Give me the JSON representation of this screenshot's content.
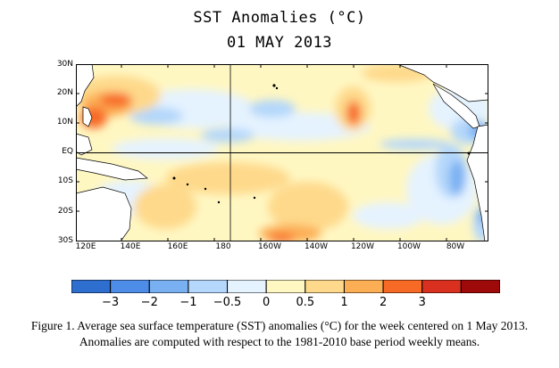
{
  "title": "SST Anomalies (°C)",
  "date": "01 MAY 2013",
  "lat_labels": [
    "30N",
    "20N",
    "10N",
    "EQ",
    "10S",
    "20S",
    "30S"
  ],
  "lon_labels": [
    "120E",
    "140E",
    "160E",
    "180",
    "160W",
    "140W",
    "120W",
    "100W",
    "80W"
  ],
  "colorbar": {
    "colors": [
      "#2e6ecf",
      "#4d8de8",
      "#79b0f2",
      "#b4d7fb",
      "#e5f3ff",
      "#fff7c2",
      "#fed98b",
      "#fcae55",
      "#f76a25",
      "#d9301f",
      "#9e0a0a"
    ],
    "tick_labels": [
      "−3",
      "−2",
      "−1",
      "−0.5",
      "0",
      "0.5",
      "1",
      "2",
      "3"
    ]
  },
  "caption_line1": "Figure 1. Average sea surface temperature (SST) anomalies (°C) for the week centered on 1 May 2013.",
  "caption_line2": "Anomalies are computed with respect to the 1981-2010 base period weekly means."
}
